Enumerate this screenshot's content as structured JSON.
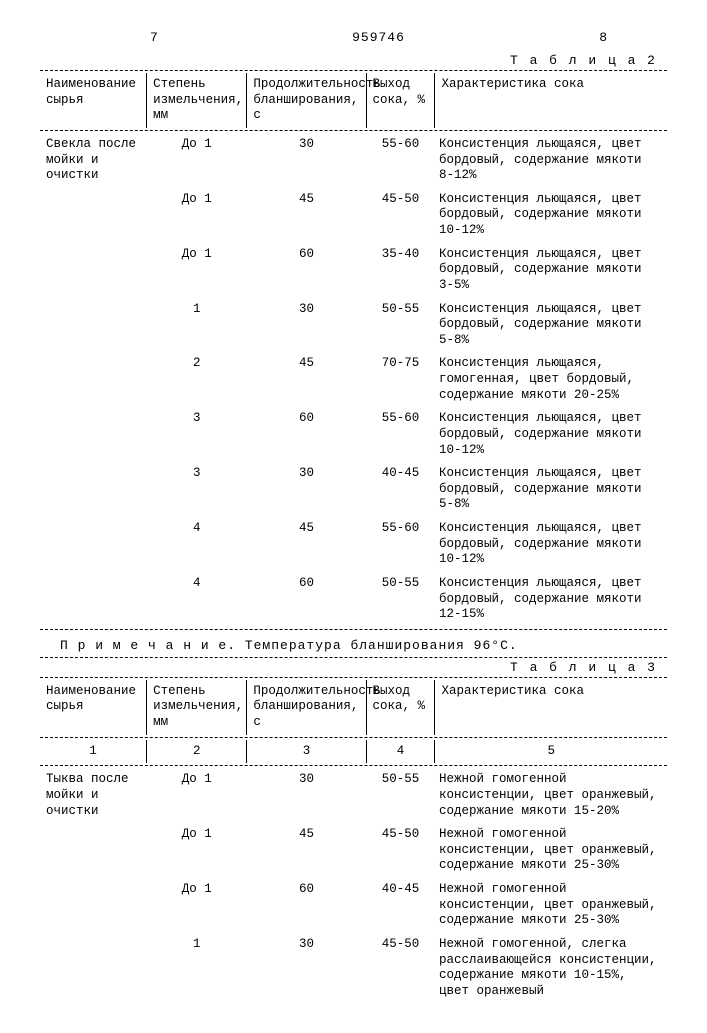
{
  "header": {
    "left_col": "7",
    "doc_number": "959746",
    "right_col": "8"
  },
  "table2": {
    "label": "Т а б л и ц а 2",
    "columns": [
      "Наименование сырья",
      "Степень измельчения, мм",
      "Продолжительность бланширования, с",
      "Выход сока, %",
      "Характеристика сока"
    ],
    "material": "Свекла после мойки и очистки",
    "rows": [
      {
        "deg": "До 1",
        "dur": "30",
        "yield": "55-60",
        "desc": "Консистенция льющаяся, цвет бордовый, содержание мякоти 8-12%"
      },
      {
        "deg": "До 1",
        "dur": "45",
        "yield": "45-50",
        "desc": "Консистенция льющаяся, цвет бордовый, содержание мякоти 10-12%"
      },
      {
        "deg": "До 1",
        "dur": "60",
        "yield": "35-40",
        "desc": "Консистенция льющаяся, цвет бордовый, содержание мякоти 3-5%"
      },
      {
        "deg": "1",
        "dur": "30",
        "yield": "50-55",
        "desc": "Консистенция льющаяся, цвет бордовый, содержание мякоти 5-8%"
      },
      {
        "deg": "2",
        "dur": "45",
        "yield": "70-75",
        "desc": "Консистенция льющаяся, гомогенная, цвет бордовый, содержание мякоти 20-25%"
      },
      {
        "deg": "3",
        "dur": "60",
        "yield": "55-60",
        "desc": "Консистенция льющаяся, цвет бордовый, содержание мякоти 10-12%"
      },
      {
        "deg": "3",
        "dur": "30",
        "yield": "40-45",
        "desc": "Консистенция льющаяся, цвет бордовый, содержание мякоти 5-8%"
      },
      {
        "deg": "4",
        "dur": "45",
        "yield": "55-60",
        "desc": "Консистенция льющаяся, цвет бордовый, содержание мякоти 10-12%"
      },
      {
        "deg": "4",
        "dur": "60",
        "yield": "50-55",
        "desc": "Консистенция льющаяся, цвет бордовый, содержание мякоти 12-15%"
      }
    ],
    "note": "П р и м е ч а н и е. Температура бланширования 96°С."
  },
  "table3": {
    "label": "Т а б л и ц а 3",
    "columns": [
      "Наименование сырья",
      "Степень измельчения, мм",
      "Продолжительность бланширования, с",
      "Выход сока, %",
      "Характеристика сока"
    ],
    "colnums": [
      "1",
      "2",
      "3",
      "4",
      "5"
    ],
    "material": "Тыква после мойки и очистки",
    "rows": [
      {
        "deg": "До 1",
        "dur": "30",
        "yield": "50-55",
        "desc": "Нежной гомогенной консистенции, цвет оранжевый, содержание мякоти 15-20%"
      },
      {
        "deg": "До 1",
        "dur": "45",
        "yield": "45-50",
        "desc": "Нежной гомогенной консистенции, цвет оранжевый, содержание мякоти 25-30%"
      },
      {
        "deg": "До 1",
        "dur": "60",
        "yield": "40-45",
        "desc": "Нежной гомогенной консистенции, цвет оранжевый, содержание мякоти 25-30%"
      },
      {
        "deg": "1",
        "dur": "30",
        "yield": "45-50",
        "desc": "Нежной гомогенной, слегка расслаивающейся консистенции, содержание мякоти 10-15%, цвет оранжевый"
      }
    ]
  }
}
